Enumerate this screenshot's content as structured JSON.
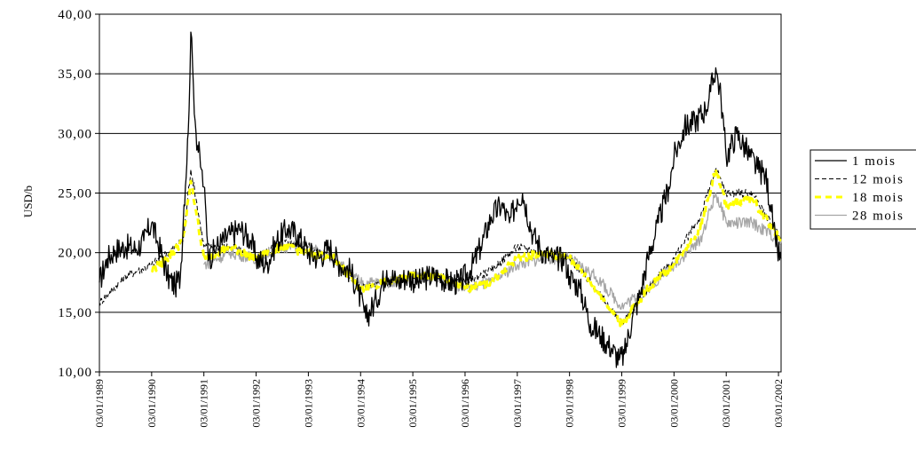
{
  "chart_data": {
    "type": "line",
    "title": "",
    "xlabel": "",
    "ylabel": "USD/b",
    "ylim": [
      10,
      40
    ],
    "y_ticks": [
      "10,00",
      "15,00",
      "20,00",
      "25,00",
      "30,00",
      "35,00",
      "40,00"
    ],
    "x_ticks": [
      "03/01/1989",
      "03/01/1990",
      "03/01/1991",
      "03/01/1992",
      "03/01/1993",
      "03/01/1994",
      "03/01/1995",
      "03/01/1996",
      "03/01/1997",
      "03/01/1998",
      "03/01/1999",
      "03/01/2000",
      "03/01/2001",
      "03/01/2002"
    ],
    "xlim": [
      1989.0,
      2002.05
    ],
    "grid": "horizontal",
    "legend_position": "right",
    "series": [
      {
        "name": "1 mois",
        "color": "#000000",
        "style": "solid",
        "x": [
          1989.0,
          1989.15,
          1989.3,
          1989.5,
          1989.7,
          1989.85,
          1990.0,
          1990.1,
          1990.2,
          1990.3,
          1990.45,
          1990.55,
          1990.62,
          1990.7,
          1990.75,
          1990.8,
          1990.85,
          1990.95,
          1991.0,
          1991.1,
          1991.25,
          1991.5,
          1991.7,
          1991.9,
          1992.0,
          1992.2,
          1992.4,
          1992.6,
          1992.8,
          1993.0,
          1993.2,
          1993.4,
          1993.6,
          1993.8,
          1993.95,
          1994.1,
          1994.3,
          1994.5,
          1994.7,
          1994.9,
          1995.1,
          1995.3,
          1995.5,
          1995.7,
          1995.9,
          1996.1,
          1996.3,
          1996.5,
          1996.7,
          1996.85,
          1997.0,
          1997.1,
          1997.3,
          1997.5,
          1997.7,
          1997.9,
          1998.0,
          1998.2,
          1998.4,
          1998.6,
          1998.8,
          1998.95,
          1999.05,
          1999.2,
          1999.35,
          1999.5,
          1999.7,
          1999.9,
          2000.0,
          2000.2,
          2000.4,
          2000.6,
          2000.7,
          2000.8,
          2000.9,
          2001.0,
          2001.2,
          2001.4,
          2001.6,
          2001.75,
          2001.85,
          2001.95,
          2002.05
        ],
        "y": [
          17.5,
          19.5,
          20.2,
          20.5,
          20.3,
          21.0,
          22.5,
          21.0,
          19.8,
          18.0,
          17.2,
          18.0,
          24.0,
          30.0,
          38.5,
          34.0,
          30.0,
          27.0,
          25.5,
          19.5,
          20.5,
          21.5,
          22.0,
          21.0,
          19.5,
          19.0,
          21.0,
          22.0,
          21.5,
          20.0,
          19.5,
          20.5,
          19.0,
          18.5,
          16.8,
          14.5,
          16.0,
          18.5,
          17.5,
          18.0,
          17.5,
          18.0,
          18.0,
          17.5,
          17.5,
          18.5,
          20.5,
          23.0,
          24.0,
          22.5,
          24.5,
          25.0,
          21.5,
          20.0,
          19.5,
          19.5,
          18.0,
          17.0,
          14.0,
          13.0,
          12.0,
          11.0,
          11.5,
          14.5,
          16.5,
          19.5,
          22.5,
          25.5,
          28.0,
          30.5,
          31.0,
          32.0,
          33.5,
          35.5,
          33.0,
          28.0,
          30.0,
          28.5,
          27.0,
          26.5,
          24.0,
          20.5,
          19.5
        ]
      },
      {
        "name": "12 mois",
        "color": "#000000",
        "style": "dashed",
        "x": [
          1989.0,
          1989.5,
          1990.0,
          1990.3,
          1990.6,
          1990.75,
          1990.85,
          1991.0,
          1991.5,
          1992.0,
          1992.5,
          1993.0,
          1993.5,
          1994.0,
          1994.5,
          1995.0,
          1995.5,
          1996.0,
          1996.5,
          1997.0,
          1997.5,
          1998.0,
          1998.5,
          1999.0,
          1999.5,
          2000.0,
          2000.5,
          2000.8,
          2001.0,
          2001.5,
          2002.05
        ],
        "y": [
          15.8,
          18.0,
          19.0,
          20.0,
          21.0,
          27.0,
          24.5,
          20.5,
          20.5,
          19.5,
          21.0,
          20.5,
          19.5,
          17.0,
          17.5,
          18.0,
          18.0,
          17.5,
          18.5,
          20.5,
          20.0,
          19.5,
          17.0,
          14.0,
          17.0,
          19.5,
          23.0,
          27.0,
          25.0,
          25.0,
          21.0
        ]
      },
      {
        "name": "18 mois",
        "color": "#ffff00",
        "style": "thick-dashed",
        "x": [
          1990.0,
          1990.3,
          1990.6,
          1990.75,
          1990.85,
          1991.0,
          1991.5,
          1992.0,
          1992.5,
          1993.0,
          1993.5,
          1994.0,
          1994.5,
          1995.0,
          1995.5,
          1996.0,
          1996.5,
          1997.0,
          1997.5,
          1998.0,
          1998.5,
          1999.0,
          1999.5,
          2000.0,
          2000.5,
          2000.8,
          2001.0,
          2001.5,
          2002.05
        ],
        "y": [
          18.5,
          19.5,
          21.0,
          26.0,
          23.5,
          19.5,
          20.5,
          19.5,
          20.5,
          20.0,
          19.5,
          17.0,
          17.5,
          18.0,
          18.0,
          17.0,
          17.5,
          19.5,
          20.0,
          19.5,
          17.0,
          14.0,
          17.0,
          19.0,
          22.0,
          27.0,
          24.0,
          24.5,
          21.0
        ]
      },
      {
        "name": "28 mois",
        "color": "#a6a6a6",
        "style": "solid",
        "x": [
          1991.0,
          1991.5,
          1992.0,
          1992.5,
          1993.0,
          1993.5,
          1994.0,
          1994.5,
          1995.0,
          1995.5,
          1996.0,
          1996.5,
          1997.0,
          1997.5,
          1998.0,
          1998.5,
          1999.0,
          1999.5,
          2000.0,
          2000.5,
          2000.8,
          2001.0,
          2001.5,
          2002.05
        ],
        "y": [
          19.0,
          20.0,
          19.5,
          20.5,
          20.5,
          19.5,
          17.5,
          17.5,
          18.0,
          18.0,
          17.0,
          17.5,
          19.0,
          19.5,
          19.5,
          18.0,
          15.5,
          17.0,
          19.0,
          21.0,
          25.0,
          22.5,
          22.5,
          21.0
        ]
      }
    ]
  }
}
